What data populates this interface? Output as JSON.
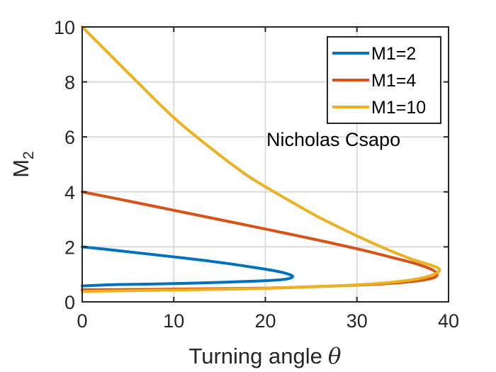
{
  "chart_data": {
    "type": "line",
    "xlabel": "Turning angle",
    "xlabel_symbol": "θ",
    "ylabel": "M",
    "ylabel_sub": "2",
    "xlim": [
      0,
      40
    ],
    "ylim": [
      0,
      10
    ],
    "xticks": [
      "0",
      "10",
      "20",
      "30",
      "40"
    ],
    "yticks": [
      "0",
      "2",
      "4",
      "6",
      "8",
      "10"
    ],
    "grid": true,
    "legend_position": "top-right",
    "annotation": "Nicholas Csapo",
    "series": [
      {
        "name": "M1=2",
        "color": "#0072BD",
        "points": [
          [
            0,
            2.0
          ],
          [
            4,
            1.86
          ],
          [
            8,
            1.71
          ],
          [
            12,
            1.56
          ],
          [
            16,
            1.39
          ],
          [
            19,
            1.24
          ],
          [
            21,
            1.13
          ],
          [
            22.2,
            1.04
          ],
          [
            22.97,
            0.93
          ],
          [
            22.3,
            0.83
          ],
          [
            20,
            0.77
          ],
          [
            16,
            0.72
          ],
          [
            12,
            0.68
          ],
          [
            8,
            0.65
          ],
          [
            4,
            0.63
          ],
          [
            0,
            0.58
          ]
        ]
      },
      {
        "name": "M1=4",
        "color": "#D95319",
        "points": [
          [
            0,
            4.0
          ],
          [
            5,
            3.67
          ],
          [
            10,
            3.33
          ],
          [
            15,
            2.99
          ],
          [
            20,
            2.65
          ],
          [
            25,
            2.3
          ],
          [
            30,
            1.93
          ],
          [
            34,
            1.6
          ],
          [
            36.5,
            1.38
          ],
          [
            38.2,
            1.17
          ],
          [
            38.75,
            1.0
          ],
          [
            38.2,
            0.86
          ],
          [
            36,
            0.74
          ],
          [
            32,
            0.64
          ],
          [
            26,
            0.56
          ],
          [
            20,
            0.5
          ],
          [
            12,
            0.47
          ],
          [
            6,
            0.45
          ],
          [
            0,
            0.44
          ]
        ]
      },
      {
        "name": "M1=10",
        "color": "#EDB120",
        "points": [
          [
            0,
            10.0
          ],
          [
            3,
            9.0
          ],
          [
            6,
            8.0
          ],
          [
            10,
            6.7
          ],
          [
            14,
            5.6
          ],
          [
            18,
            4.6
          ],
          [
            22,
            3.8
          ],
          [
            26,
            3.05
          ],
          [
            30,
            2.4
          ],
          [
            33,
            1.95
          ],
          [
            36,
            1.55
          ],
          [
            38.2,
            1.32
          ],
          [
            39.0,
            1.18
          ],
          [
            38.6,
            1.03
          ],
          [
            37,
            0.86
          ],
          [
            34,
            0.72
          ],
          [
            30,
            0.62
          ],
          [
            25,
            0.55
          ],
          [
            20,
            0.49
          ],
          [
            12,
            0.44
          ],
          [
            6,
            0.41
          ],
          [
            0,
            0.38
          ]
        ]
      }
    ]
  }
}
